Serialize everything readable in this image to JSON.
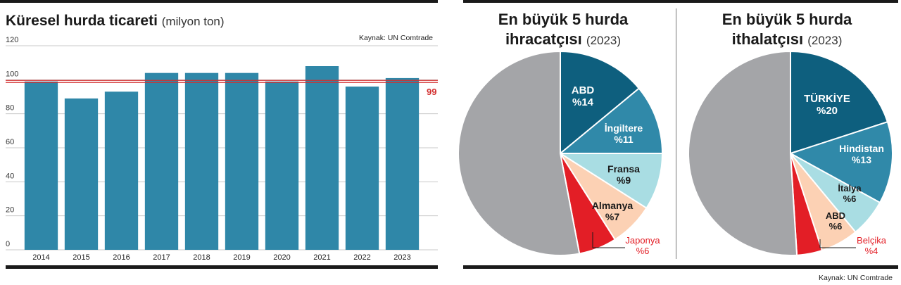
{
  "bar_chart": {
    "title": "Küresel hurda ticareti",
    "unit": "(milyon ton)",
    "source": "Kaynak: UN Comtrade",
    "ref_line_label": "99"
  },
  "pie_export": {
    "title_line1": "En büyük 5 hurda",
    "title_line2": "ihracatçısı",
    "year": "(2023)"
  },
  "pie_import": {
    "title_line1": "En büyük 5 hurda",
    "title_line2": "ithalatçısı",
    "year": "(2023)"
  },
  "footer_source": "Kaynak: UN Comtrade",
  "chart_data": [
    {
      "type": "bar",
      "title": "Küresel hurda ticareti",
      "ylabel": "",
      "xlabel": "",
      "categories": [
        "2014",
        "2015",
        "2016",
        "2017",
        "2018",
        "2019",
        "2020",
        "2021",
        "2022",
        "2023"
      ],
      "values": [
        99,
        89,
        93,
        104,
        104,
        104,
        99,
        108,
        96,
        101
      ],
      "ylim": [
        0,
        120
      ],
      "yticks": [
        0,
        20,
        40,
        60,
        80,
        100,
        120
      ],
      "reference_line": 99,
      "grid": true,
      "colors": {
        "bar": "#2f87a8",
        "reference": "#d32f2f"
      }
    },
    {
      "type": "pie",
      "title": "En büyük 5 hurda ihracatçısı (2023)",
      "slices": [
        {
          "country": "ABD",
          "label": "%14",
          "value": 14,
          "color": "#0e5f7e",
          "text_color": "#ffffff"
        },
        {
          "country": "İngiltere",
          "label": "%11",
          "value": 11,
          "color": "#3089a9",
          "text_color": "#ffffff"
        },
        {
          "country": "Fransa",
          "label": "%9",
          "value": 9,
          "color": "#a9dde3",
          "text_color": "#1a1a1a"
        },
        {
          "country": "Almanya",
          "label": "%7",
          "value": 7,
          "color": "#fcd1b4",
          "text_color": "#1a1a1a"
        },
        {
          "country": "Japonya",
          "label": "%6",
          "value": 6,
          "color": "#e31e26",
          "text_color": "#e31e26"
        },
        {
          "country": "",
          "label": "",
          "value": 53,
          "color": "#a4a5a8",
          "text_color": "#1a1a1a"
        }
      ]
    },
    {
      "type": "pie",
      "title": "En büyük 5 hurda ithalatçısı (2023)",
      "slices": [
        {
          "country": "TÜRKİYE",
          "label": "%20",
          "value": 20,
          "color": "#0e5f7e",
          "text_color": "#ffffff"
        },
        {
          "country": "Hindistan",
          "label": "%13",
          "value": 13,
          "color": "#3089a9",
          "text_color": "#ffffff"
        },
        {
          "country": "İtalya",
          "label": "%6",
          "value": 6,
          "color": "#a9dde3",
          "text_color": "#1a1a1a"
        },
        {
          "country": "ABD",
          "label": "%6",
          "value": 6,
          "color": "#fcd1b4",
          "text_color": "#1a1a1a"
        },
        {
          "country": "Belçika",
          "label": "%4",
          "value": 4,
          "color": "#e31e26",
          "text_color": "#e31e26"
        },
        {
          "country": "",
          "label": "",
          "value": 51,
          "color": "#a4a5a8",
          "text_color": "#1a1a1a"
        }
      ]
    }
  ]
}
